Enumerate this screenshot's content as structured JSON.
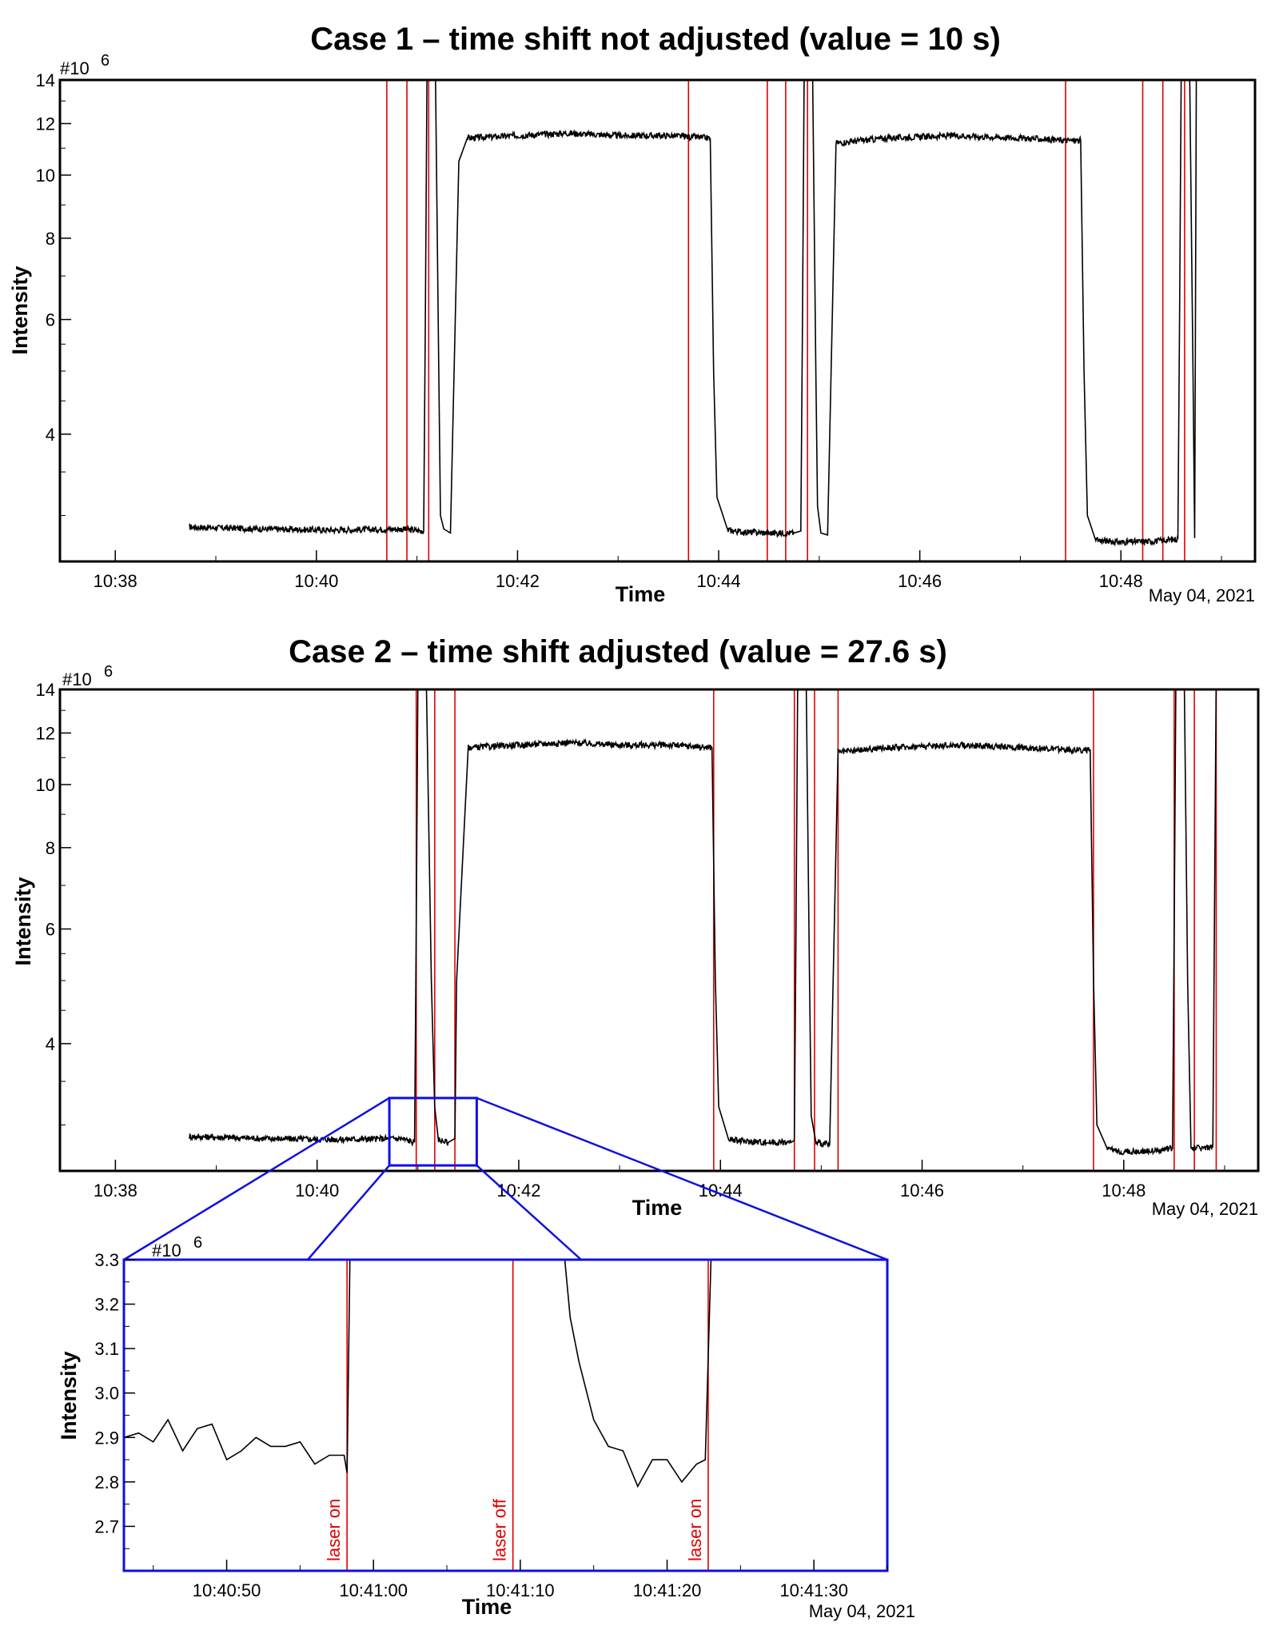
{
  "colors": {
    "signal": "#000000",
    "marker": "#e00000",
    "zoom": "#1010e0"
  },
  "chart_data": [
    {
      "type": "line",
      "title": "Case 1 – time shift not adjusted (value = 10 s)",
      "xlabel": "Time",
      "ylabel": "Intensity",
      "y_multiplier": "#10",
      "y_exponent": "6",
      "date": "May 04, 2021",
      "x_ticks": [
        "10:38",
        "10:40",
        "10:42",
        "10:44",
        "10:46",
        "10:48"
      ],
      "y_ticks": [
        "4",
        "6",
        "8",
        "10",
        "12",
        "14"
      ],
      "y_scale": "log",
      "xlim": [
        "10:37:27",
        "10:49:20"
      ],
      "ylim": [
        2.55,
        14.0
      ],
      "markers": [
        "10:40:42",
        "10:40:54",
        "10:41:07",
        "10:43:42",
        "10:44:29",
        "10:44:40",
        "10:44:53",
        "10:47:27",
        "10:48:13",
        "10:48:25",
        "10:48:38"
      ],
      "series": [
        {
          "x": [
            "10:38:44",
            "10:39:30",
            "10:40:10",
            "10:40:50",
            "10:41:04",
            "10:41:05",
            "10:41:06",
            "10:41:11",
            "10:41:13",
            "10:41:14",
            "10:41:16",
            "10:41:20",
            "10:41:25",
            "10:41:30",
            "10:42:00",
            "10:42:30",
            "10:43:00",
            "10:43:30",
            "10:43:55",
            "10:43:57",
            "10:43:59",
            "10:44:05",
            "10:44:15",
            "10:44:30",
            "10:44:45",
            "10:44:49",
            "10:44:50",
            "10:44:51",
            "10:44:56",
            "10:44:58",
            "10:44:59",
            "10:45:01",
            "10:45:05",
            "10:45:10",
            "10:45:40",
            "10:46:20",
            "10:47:00",
            "10:47:30",
            "10:47:36",
            "10:47:38",
            "10:47:40",
            "10:47:45",
            "10:48:00",
            "10:48:20",
            "10:48:34",
            "10:48:35",
            "10:48:36",
            "10:48:41",
            "10:48:43",
            "10:48:44",
            "10:48:45"
          ],
          "y": [
            2.88,
            2.86,
            2.85,
            2.86,
            2.84,
            6.0,
            14.5,
            14.5,
            5.0,
            3.0,
            2.86,
            2.82,
            10.5,
            11.4,
            11.5,
            11.6,
            11.5,
            11.5,
            11.4,
            5.0,
            3.2,
            2.85,
            2.83,
            2.82,
            2.82,
            2.84,
            6.0,
            14.5,
            14.5,
            5.0,
            3.1,
            2.82,
            2.8,
            11.2,
            11.4,
            11.5,
            11.4,
            11.3,
            11.3,
            5.0,
            3.0,
            2.75,
            2.73,
            2.74,
            2.76,
            6.0,
            14.5,
            14.5,
            5.0,
            2.77,
            14.5
          ]
        }
      ]
    },
    {
      "type": "line",
      "title": "Case 2 – time shift adjusted (value = 27.6 s)",
      "xlabel": "Time",
      "ylabel": "Intensity",
      "y_multiplier": "#10",
      "y_exponent": "6",
      "date": "May 04, 2021",
      "x_ticks": [
        "10:38",
        "10:40",
        "10:42",
        "10:44",
        "10:46",
        "10:48"
      ],
      "y_ticks": [
        "4",
        "6",
        "8",
        "10",
        "12",
        "14"
      ],
      "y_scale": "log",
      "xlim": [
        "10:37:27",
        "10:49:20"
      ],
      "ylim": [
        2.55,
        14.0
      ],
      "markers": [
        "10:40:59",
        "10:41:10",
        "10:41:22",
        "10:43:56",
        "10:44:44",
        "10:44:56",
        "10:45:10",
        "10:47:42",
        "10:48:30",
        "10:48:42",
        "10:48:55"
      ],
      "series": [
        {
          "x": [
            "10:38:44",
            "10:39:30",
            "10:40:10",
            "10:40:50",
            "10:40:58",
            "10:40:59",
            "10:41:00",
            "10:41:05",
            "10:41:08",
            "10:41:10",
            "10:41:12",
            "10:41:18",
            "10:41:22",
            "10:41:23",
            "10:41:30",
            "10:42:00",
            "10:42:30",
            "10:43:00",
            "10:43:30",
            "10:43:55",
            "10:43:57",
            "10:43:59",
            "10:44:05",
            "10:44:15",
            "10:44:30",
            "10:44:42",
            "10:44:44",
            "10:44:45",
            "10:44:46",
            "10:44:51",
            "10:44:53",
            "10:44:54",
            "10:44:57",
            "10:45:05",
            "10:45:10",
            "10:45:40",
            "10:46:20",
            "10:47:00",
            "10:47:30",
            "10:47:40",
            "10:47:42",
            "10:47:44",
            "10:47:50",
            "10:48:00",
            "10:48:20",
            "10:48:29",
            "10:48:30",
            "10:48:31",
            "10:48:36",
            "10:48:38",
            "10:48:40",
            "10:48:53",
            "10:48:55"
          ],
          "y": [
            2.88,
            2.86,
            2.85,
            2.86,
            2.82,
            6.0,
            14.5,
            14.5,
            5.0,
            3.2,
            2.85,
            2.82,
            2.86,
            5.0,
            11.4,
            11.5,
            11.6,
            11.5,
            11.5,
            11.4,
            5.0,
            3.2,
            2.85,
            2.83,
            2.82,
            2.82,
            2.84,
            6.0,
            14.5,
            14.5,
            5.0,
            3.1,
            2.82,
            2.8,
            11.2,
            11.4,
            11.5,
            11.4,
            11.3,
            11.3,
            5.0,
            3.0,
            2.75,
            2.73,
            2.74,
            2.76,
            6.0,
            14.5,
            14.5,
            5.0,
            2.77,
            2.77,
            14.5
          ]
        }
      ]
    },
    {
      "type": "line",
      "title": "",
      "xlabel": "Time",
      "ylabel": "Intensity",
      "y_multiplier": "#10",
      "y_exponent": "6",
      "date": "May 04, 2021",
      "x_ticks": [
        "10:40:50",
        "10:41:00",
        "10:41:10",
        "10:41:20",
        "10:41:30"
      ],
      "y_ticks": [
        "2.7",
        "2.8",
        "2.9",
        "3.0",
        "3.1",
        "3.2",
        "3.3"
      ],
      "xlim": [
        "10:40:43",
        "10:41:35"
      ],
      "ylim": [
        2.6,
        3.3
      ],
      "markers": [
        "10:40:58.2",
        "10:41:09.5",
        "10:41:22.8"
      ],
      "annotations": [
        "laser on",
        "laser off",
        "laser on"
      ],
      "series": [
        {
          "x": [
            "10:40:43",
            "10:40:44",
            "10:40:45",
            "10:40:46",
            "10:40:47",
            "10:40:48",
            "10:40:49",
            "10:40:50",
            "10:40:51",
            "10:40:52",
            "10:40:53",
            "10:40:54",
            "10:40:55",
            "10:40:56",
            "10:40:57",
            "10:40:58",
            "10:40:58.2",
            "10:40:58.4",
            "10:41:13.0",
            "10:41:13.4",
            "10:41:14",
            "10:41:15",
            "10:41:16",
            "10:41:17",
            "10:41:18",
            "10:41:19",
            "10:41:20",
            "10:41:21",
            "10:41:22",
            "10:41:22.6",
            "10:41:23.0"
          ],
          "y": [
            2.9,
            2.91,
            2.89,
            2.94,
            2.87,
            2.92,
            2.93,
            2.85,
            2.87,
            2.9,
            2.88,
            2.88,
            2.89,
            2.84,
            2.86,
            2.86,
            2.82,
            3.31,
            3.31,
            3.17,
            3.07,
            2.94,
            2.88,
            2.87,
            2.79,
            2.85,
            2.85,
            2.8,
            2.84,
            2.85,
            3.31
          ]
        }
      ]
    }
  ]
}
